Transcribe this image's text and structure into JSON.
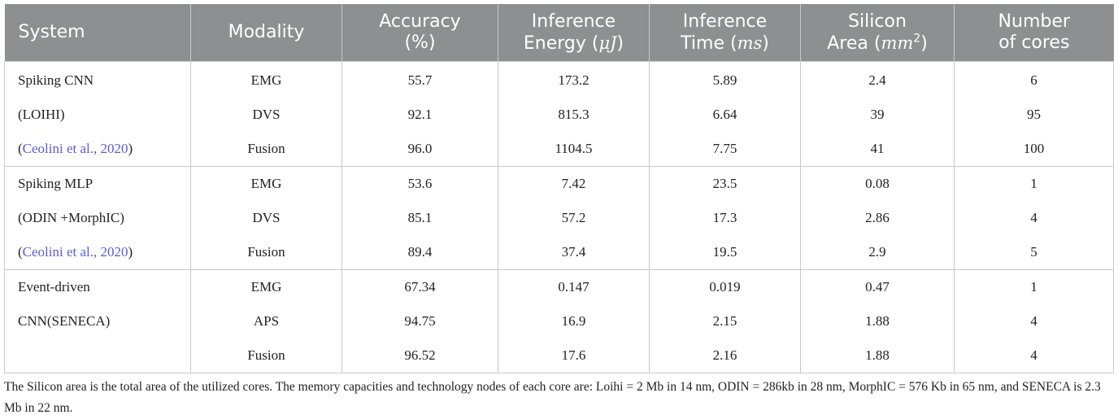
{
  "headers": [
    {
      "text": "System"
    },
    {
      "text": "Modality"
    },
    {
      "line1": "Accuracy",
      "line2": "(%)"
    },
    {
      "line1": "Inference",
      "line2a": "Energy (",
      "unit": "μJ",
      "line2b": ")"
    },
    {
      "line1": "Inference",
      "line2a": "Time (",
      "unit": "ms",
      "line2b": ")"
    },
    {
      "line1": "Silicon",
      "line2a": "Area (",
      "unit": "mm",
      "sup": "2",
      "line2b": ")"
    },
    {
      "line1": "Number",
      "line2": "of cores"
    }
  ],
  "rows": [
    {
      "system": "Spiking CNN",
      "modality": "EMG",
      "accuracy": "55.7",
      "energy": "173.2",
      "time": "5.89",
      "area": "2.4",
      "cores": "6"
    },
    {
      "system": "(LOIHI)",
      "modality": "DVS",
      "accuracy": "92.1",
      "energy": "815.3",
      "time": "6.64",
      "area": "39",
      "cores": "95"
    },
    {
      "system_pre": "(",
      "system_cite": "Ceolini et al., 2020",
      "system_post": ")",
      "modality": "Fusion",
      "accuracy": "96.0",
      "energy": "1104.5",
      "time": "7.75",
      "area": "41",
      "cores": "100"
    },
    {
      "system": "Spiking MLP",
      "modality": "EMG",
      "accuracy": "53.6",
      "energy": "7.42",
      "time": "23.5",
      "area": "0.08",
      "cores": "1"
    },
    {
      "system": "(ODIN +MorphIC)",
      "modality": "DVS",
      "accuracy": "85.1",
      "energy": "57.2",
      "time": "17.3",
      "area": "2.86",
      "cores": "4"
    },
    {
      "system_pre": "(",
      "system_cite": "Ceolini et al., 2020",
      "system_post": ")",
      "modality": "Fusion",
      "accuracy": "89.4",
      "energy": "37.4",
      "time": "19.5",
      "area": "2.9",
      "cores": "5"
    },
    {
      "system": "Event-driven",
      "modality": "EMG",
      "accuracy": "67.34",
      "energy": "0.147",
      "time": "0.019",
      "area": "0.47",
      "cores": "1"
    },
    {
      "system": "CNN(SENECA)",
      "modality": "APS",
      "accuracy": "94.75",
      "energy": "16.9",
      "time": "2.15",
      "area": "1.88",
      "cores": "4"
    },
    {
      "system": "",
      "modality": "Fusion",
      "accuracy": "96.52",
      "energy": "17.6",
      "time": "2.16",
      "area": "1.88",
      "cores": "4"
    }
  ],
  "footnote": "The Silicon area is the total area of the utilized cores. The memory capacities and technology nodes of each core are: Loihi = 2 Mb in 14 nm, ODIN = 286kb in 28 nm, MorphIC = 576 Kb in 65 nm, and SENECA is 2.3 Mb in 22 nm.",
  "colors": {
    "header_bg": "#8d8f90",
    "header_text": "#ffffff",
    "citation": "#5b5bd6",
    "rule": "#c9c9c9"
  }
}
